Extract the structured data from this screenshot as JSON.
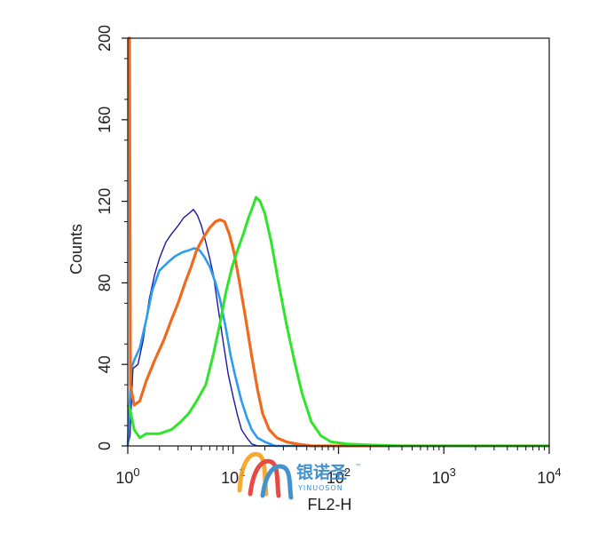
{
  "chart_data": {
    "type": "line",
    "xlabel": "FL2-H",
    "ylabel": "Counts",
    "x_scale": "log",
    "xlim": [
      1,
      10000
    ],
    "ylim": [
      0,
      200
    ],
    "y_ticks": [
      0,
      40,
      80,
      120,
      160,
      200
    ],
    "y_tick_labels": [
      "0",
      "40",
      "80",
      "120",
      "160",
      "200"
    ],
    "x_ticks": [
      1,
      10,
      100,
      1000,
      10000
    ],
    "x_tick_labels": [
      {
        "base": "10",
        "exp": "0"
      },
      {
        "base": "10",
        "exp": "1"
      },
      {
        "base": "10",
        "exp": "2"
      },
      {
        "base": "10",
        "exp": "3"
      },
      {
        "base": "10",
        "exp": "4"
      }
    ],
    "grid": false,
    "series": [
      {
        "color": "#1a1aa6",
        "width": 1.4,
        "points": [
          [
            1,
            0
          ],
          [
            1.05,
            5
          ],
          [
            1.12,
            38
          ],
          [
            1.25,
            40
          ],
          [
            1.4,
            52
          ],
          [
            1.6,
            72
          ],
          [
            1.8,
            84
          ],
          [
            2.0,
            92
          ],
          [
            2.3,
            100
          ],
          [
            2.6,
            104
          ],
          [
            3.0,
            108
          ],
          [
            3.4,
            112
          ],
          [
            3.8,
            114
          ],
          [
            4.2,
            116
          ],
          [
            4.6,
            113
          ],
          [
            5.0,
            108
          ],
          [
            5.5,
            100
          ],
          [
            6.0,
            92
          ],
          [
            6.5,
            84
          ],
          [
            7.0,
            72
          ],
          [
            8.0,
            52
          ],
          [
            9.0,
            35
          ],
          [
            10,
            24
          ],
          [
            11,
            15
          ],
          [
            12,
            8
          ],
          [
            13.5,
            4
          ],
          [
            15,
            1
          ],
          [
            17,
            0
          ],
          [
            10000,
            0
          ]
        ]
      },
      {
        "color": "#2b9cf0",
        "width": 2.6,
        "points": [
          [
            1,
            0
          ],
          [
            1.08,
            38
          ],
          [
            1.15,
            42
          ],
          [
            1.3,
            48
          ],
          [
            1.5,
            62
          ],
          [
            1.7,
            76
          ],
          [
            2.0,
            86
          ],
          [
            2.4,
            90
          ],
          [
            2.8,
            93
          ],
          [
            3.3,
            95
          ],
          [
            3.8,
            96
          ],
          [
            4.3,
            97
          ],
          [
            4.8,
            96
          ],
          [
            5.3,
            93
          ],
          [
            6.0,
            88
          ],
          [
            6.8,
            80
          ],
          [
            7.5,
            72
          ],
          [
            8.5,
            58
          ],
          [
            9.5,
            44
          ],
          [
            10.5,
            34
          ],
          [
            12,
            22
          ],
          [
            13.5,
            14
          ],
          [
            15,
            8
          ],
          [
            17,
            4
          ],
          [
            20,
            2
          ],
          [
            25,
            0
          ],
          [
            10000,
            0
          ]
        ]
      },
      {
        "color": "#f06a1e",
        "width": 3.2,
        "points": [
          [
            1,
            200
          ],
          [
            1.04,
            200
          ],
          [
            1.06,
            30
          ],
          [
            1.15,
            20
          ],
          [
            1.3,
            22
          ],
          [
            1.5,
            32
          ],
          [
            1.8,
            42
          ],
          [
            2.2,
            52
          ],
          [
            2.6,
            62
          ],
          [
            3.0,
            70
          ],
          [
            3.5,
            80
          ],
          [
            4.0,
            88
          ],
          [
            4.5,
            96
          ],
          [
            5.2,
            102
          ],
          [
            6.0,
            107
          ],
          [
            6.8,
            110
          ],
          [
            7.5,
            111
          ],
          [
            8.3,
            110
          ],
          [
            9.2,
            104
          ],
          [
            10.2,
            95
          ],
          [
            11.5,
            80
          ],
          [
            13,
            64
          ],
          [
            15,
            44
          ],
          [
            17,
            28
          ],
          [
            19,
            16
          ],
          [
            22,
            8
          ],
          [
            26,
            4
          ],
          [
            32,
            2
          ],
          [
            40,
            1
          ],
          [
            55,
            0
          ],
          [
            10000,
            0
          ]
        ]
      },
      {
        "color": "#2fe52a",
        "width": 3.0,
        "points": [
          [
            1,
            20
          ],
          [
            1.05,
            18
          ],
          [
            1.15,
            8
          ],
          [
            1.3,
            4
          ],
          [
            1.5,
            6
          ],
          [
            2.0,
            6
          ],
          [
            2.6,
            8
          ],
          [
            3.2,
            12
          ],
          [
            3.8,
            16
          ],
          [
            4.5,
            22
          ],
          [
            5.5,
            30
          ],
          [
            6.5,
            45
          ],
          [
            7.5,
            60
          ],
          [
            8.5,
            75
          ],
          [
            9.8,
            88
          ],
          [
            11,
            96
          ],
          [
            12.5,
            104
          ],
          [
            14,
            112
          ],
          [
            15.5,
            118
          ],
          [
            16.5,
            122
          ],
          [
            18,
            120
          ],
          [
            20,
            114
          ],
          [
            23,
            100
          ],
          [
            27,
            80
          ],
          [
            32,
            60
          ],
          [
            38,
            42
          ],
          [
            45,
            26
          ],
          [
            55,
            12
          ],
          [
            68,
            5
          ],
          [
            85,
            2
          ],
          [
            120,
            1
          ],
          [
            200,
            0.5
          ],
          [
            400,
            0
          ],
          [
            10000,
            0
          ]
        ]
      }
    ]
  },
  "watermark": {
    "chinese": "银诺圣",
    "english": "YINUOSON",
    "trademark": "™"
  }
}
